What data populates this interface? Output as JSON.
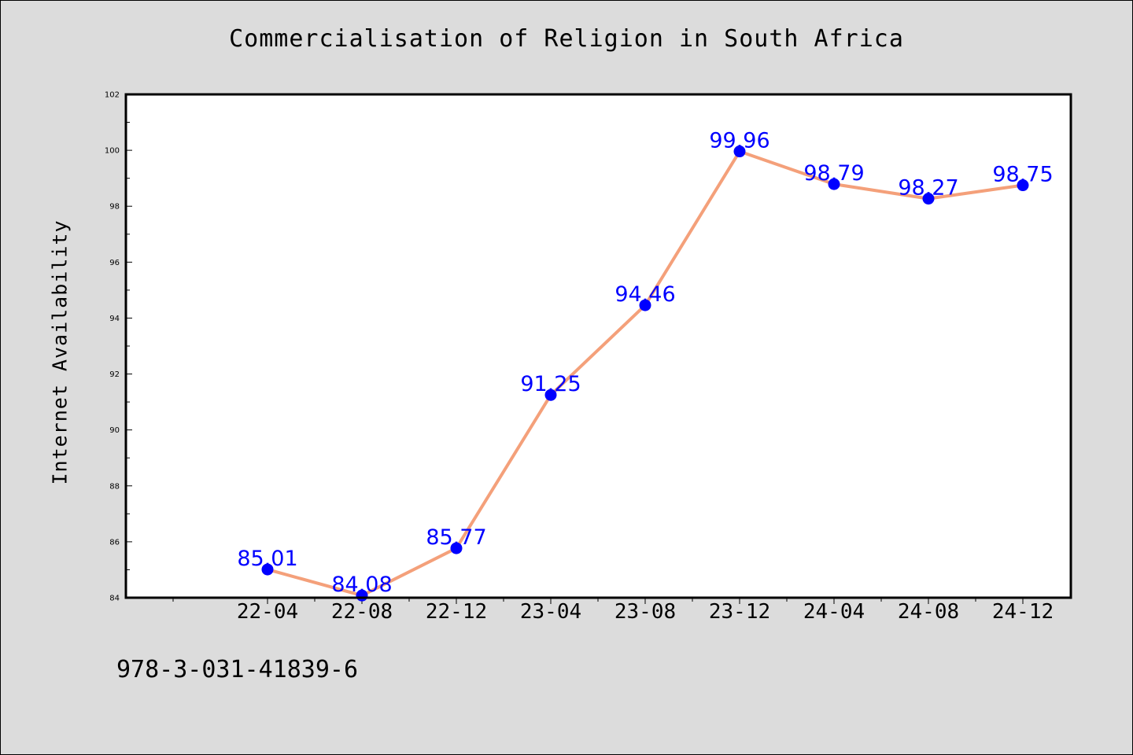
{
  "chart_data": {
    "type": "line",
    "title": "Commercialisation of Religion in South Africa",
    "xlabel": "",
    "ylabel": "Internet Availability",
    "categories": [
      "22-04",
      "22-08",
      "22-12",
      "23-04",
      "23-08",
      "23-12",
      "24-04",
      "24-08",
      "24-12"
    ],
    "values": [
      85.01,
      84.08,
      85.77,
      91.25,
      94.46,
      99.96,
      98.79,
      98.27,
      98.75
    ],
    "data_labels": [
      "85.01",
      "84.08",
      "85.77",
      "91.25",
      "94.46",
      "99.96",
      "98.79",
      "98.27",
      "98.75"
    ],
    "ylim": [
      84,
      102
    ],
    "yticks": [
      "84",
      "86",
      "88",
      "90",
      "92",
      "94",
      "96",
      "98",
      "100",
      "102"
    ],
    "line_color": "#f4a07a",
    "marker_color": "#0000ff",
    "label_color": "#0000ff",
    "grid": false,
    "legend": "none"
  },
  "footer": {
    "code": "978-3-031-41839-6"
  },
  "colors": {
    "background": "#dcdcdc",
    "plot_background": "#ffffff"
  }
}
